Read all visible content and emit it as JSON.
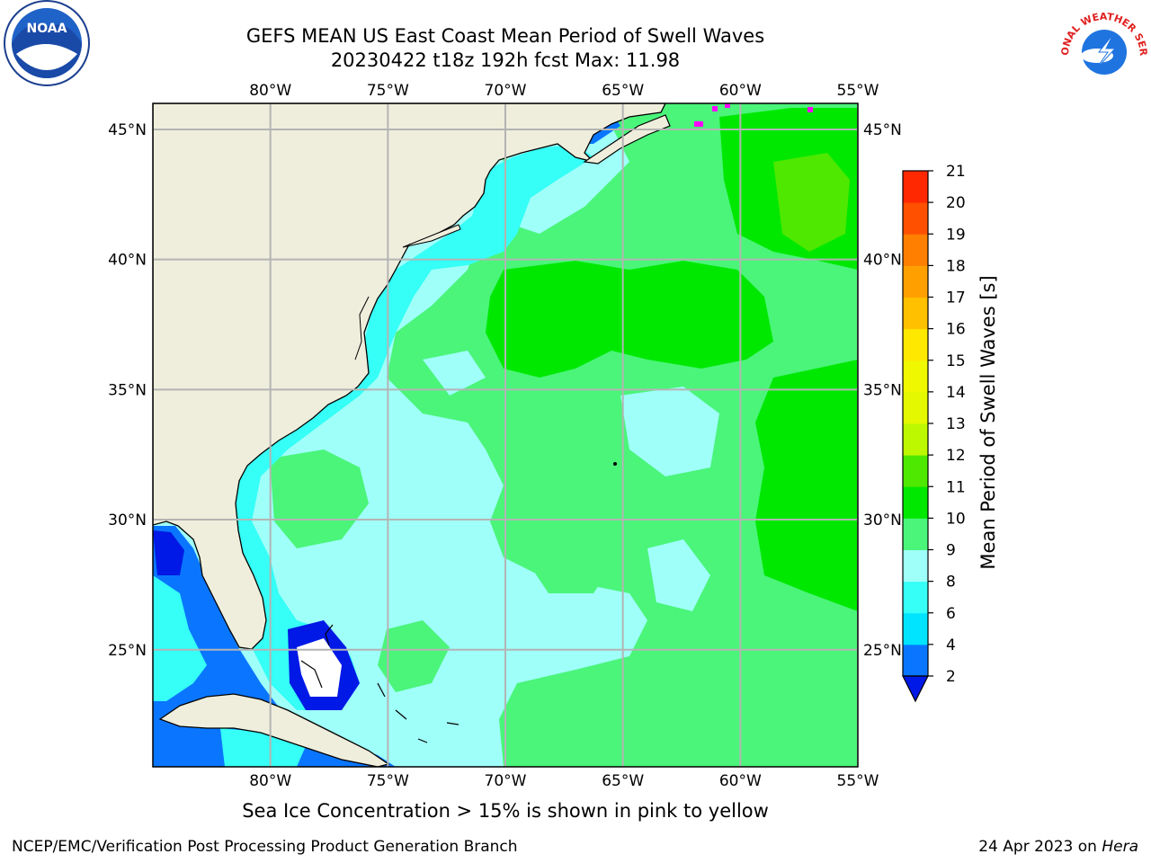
{
  "title": {
    "line1": "GEFS MEAN US East Coast Mean Period of Swell Waves",
    "line2": "20230422 t18z 192h fcst   Max: 11.98"
  },
  "map": {
    "lon_labels": [
      "80°W",
      "75°W",
      "70°W",
      "65°W",
      "60°W",
      "55°W"
    ],
    "lat_labels": [
      "45°N",
      "40°N",
      "35°N",
      "30°N",
      "25°N"
    ],
    "lon_range": [
      -85,
      -55
    ],
    "lat_range": [
      20.5,
      46
    ],
    "colors": {
      "land": "#efeedc",
      "ocean_light": "#9ffff9",
      "ocean_cyan": "#35fff6",
      "ocean_green": "#4af57a",
      "ocean_bright_green": "#00e800",
      "deep_blue": "#0a76ff",
      "dark_blue": "#0019e6",
      "grid": "#b4b4b4",
      "ice": "#ff00ff"
    }
  },
  "colorbar": {
    "label": "Mean Period of Swell Waves [s]",
    "ticks": [
      "2",
      "4",
      "6",
      "8",
      "9",
      "10",
      "11",
      "12",
      "13",
      "14",
      "15",
      "16",
      "17",
      "18",
      "19",
      "20",
      "21"
    ],
    "colors": [
      "#0a76ff",
      "#00e4ff",
      "#35fff6",
      "#9ffff9",
      "#4af57a",
      "#00e800",
      "#4ee800",
      "#bef800",
      "#e4f800",
      "#f0f800",
      "#ffe800",
      "#ffc000",
      "#ffa000",
      "#ff8000",
      "#ff5000",
      "#ff2800",
      "#ff0000"
    ],
    "extend_color": "#0019e6"
  },
  "note": "Sea Ice Concentration > 15% is shown in pink to yellow",
  "footer": {
    "left": "NCEP/EMC/Verification Post Processing Product Generation Branch",
    "right_date": "24 Apr 2023 on ",
    "right_host": "Hera"
  },
  "logos": {
    "noaa_text": "NOAA",
    "nws_text": "NATIONAL WEATHER SERVICE"
  }
}
